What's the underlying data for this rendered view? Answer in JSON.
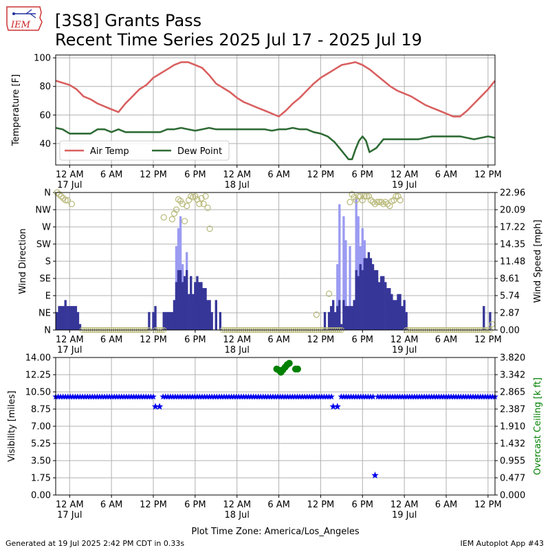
{
  "header": {
    "logo_text": "IEM",
    "title_line1": "[3S8] Grants Pass",
    "title_line2": "Recent Time Series 2025 Jul 17 - 2025 Jul 19"
  },
  "footer": {
    "generated": "Generated at 19 Jul 2025 2:42 PM CDT in 0.33s",
    "app": "IEM Autoplot App #43"
  },
  "x_axis": {
    "range_hours": [
      -2,
      61
    ],
    "ticks": [
      {
        "h": 0,
        "label": "12 AM",
        "date": "17 Jul"
      },
      {
        "h": 6,
        "label": "6 AM"
      },
      {
        "h": 12,
        "label": "12 PM"
      },
      {
        "h": 18,
        "label": "6 PM"
      },
      {
        "h": 24,
        "label": "12 AM",
        "date": "18 Jul"
      },
      {
        "h": 30,
        "label": "6 AM"
      },
      {
        "h": 36,
        "label": "12 PM"
      },
      {
        "h": 42,
        "label": "6 PM"
      },
      {
        "h": 48,
        "label": "12 AM",
        "date": "19 Jul"
      },
      {
        "h": 54,
        "label": "6 AM"
      },
      {
        "h": 60,
        "label": "12 PM"
      }
    ],
    "xlabel": "Plot Time Zone: America/Los_Angeles"
  },
  "colors": {
    "air_temp": "#d95f5f",
    "dew_point": "#2e6b34",
    "gust": "#9b9bf2",
    "wind_speed": "#363699",
    "direction": "#b8b87a",
    "visibility": "#0000ee",
    "ceiling": "#008000",
    "grid": "#b0b0b0"
  },
  "chart_data": [
    {
      "type": "line",
      "panel": "temperature",
      "ylabel": "Temperature [F]",
      "ylim": [
        25,
        102
      ],
      "yticks": [
        40,
        60,
        80,
        100
      ],
      "grid": true,
      "legend_placement": "lower-left",
      "series": [
        {
          "name": "Air Temp",
          "x": [
            -2,
            0,
            1,
            2,
            3,
            4,
            5,
            6,
            7,
            8,
            9,
            10,
            11,
            12,
            13,
            14,
            15,
            16,
            17,
            18,
            19,
            20,
            21,
            22,
            23,
            24,
            25,
            26,
            27,
            28,
            29,
            30,
            31,
            32,
            33,
            34,
            35,
            36,
            37,
            38,
            39,
            40,
            41,
            42,
            43,
            44,
            45,
            46,
            47,
            48,
            49,
            50,
            51,
            52,
            53,
            54,
            55,
            56,
            57,
            58,
            59,
            60,
            61
          ],
          "values": [
            84,
            81,
            78,
            73,
            71,
            68,
            66,
            64,
            62,
            68,
            73,
            78,
            81,
            86,
            89,
            92,
            95,
            97,
            97,
            95,
            93,
            88,
            82,
            79,
            76,
            72,
            69,
            67,
            65,
            63,
            61,
            59,
            63,
            68,
            72,
            77,
            82,
            86,
            89,
            92,
            95,
            96,
            97,
            95,
            92,
            88,
            84,
            80,
            77,
            75,
            73,
            70,
            67,
            65,
            63,
            61,
            59,
            59,
            63,
            68,
            73,
            78,
            84
          ]
        },
        {
          "name": "Dew Point",
          "x": [
            -2,
            -1,
            0,
            1,
            2,
            3,
            4,
            5,
            6,
            7,
            8,
            9,
            10,
            11,
            12,
            13,
            14,
            15,
            16,
            17,
            18,
            19,
            20,
            21,
            22,
            23,
            24,
            25,
            26,
            27,
            28,
            29,
            30,
            31,
            32,
            33,
            34,
            35,
            36,
            37,
            38,
            39,
            40,
            40.5,
            41,
            41.5,
            42,
            42.5,
            43,
            44,
            45,
            46,
            47,
            48,
            49,
            50,
            51,
            52,
            53,
            54,
            55,
            56,
            57,
            58,
            59,
            60,
            61
          ],
          "values": [
            51,
            50,
            47,
            47,
            47,
            47,
            50,
            50,
            48,
            50,
            48,
            48,
            48,
            48,
            48,
            48,
            50,
            50,
            51,
            50,
            49,
            50,
            51,
            50,
            50,
            50,
            50,
            50,
            50,
            50,
            50,
            49,
            50,
            50,
            51,
            50,
            50,
            48,
            47,
            45,
            41,
            35,
            29,
            29,
            36,
            42,
            45,
            42,
            34,
            37,
            43,
            43,
            43,
            43,
            43,
            43,
            44,
            45,
            45,
            45,
            45,
            45,
            44,
            43,
            44,
            45,
            44
          ]
        }
      ]
    },
    {
      "type": "bar",
      "panel": "wind",
      "ylabel": "Wind Direction",
      "ylabel_right": "Wind Speed [mph]",
      "y_direction_ticks": [
        "N",
        "NE",
        "E",
        "SE",
        "S",
        "SW",
        "W",
        "NW",
        "N"
      ],
      "y_speed_ticks": [
        "0.00",
        "2.87",
        "5.74",
        "8.61",
        "11.48",
        "14.35",
        "17.22",
        "20.09",
        "22.96"
      ],
      "speed_range": [
        0,
        22.96
      ],
      "grid": true,
      "series": [
        {
          "name": "Gust",
          "x": [
            15.3,
            15.6,
            15.9,
            16.2,
            16.8,
            38.4,
            38.7,
            39.3,
            39.6,
            40.2,
            41.1,
            41.4,
            41.7,
            42.0,
            42.3
          ],
          "values": [
            14,
            17,
            19,
            11,
            13,
            11,
            21,
            19,
            15,
            14,
            22,
            19,
            14,
            17,
            15
          ]
        },
        {
          "name": "Wind Speed",
          "x": [
            -1.8,
            -1.5,
            -1.2,
            -0.9,
            -0.6,
            -0.3,
            0,
            0.3,
            0.6,
            0.9,
            1.2,
            1.5,
            11.4,
            12.0,
            12.3,
            13.5,
            13.8,
            14.1,
            14.4,
            14.7,
            15.0,
            15.3,
            15.6,
            15.9,
            16.2,
            16.5,
            16.8,
            17.1,
            17.4,
            17.7,
            18.0,
            18.3,
            18.6,
            18.9,
            19.2,
            19.5,
            19.8,
            20.1,
            20.4,
            21.0,
            21.6,
            36.6,
            37.2,
            37.5,
            37.8,
            38.1,
            38.4,
            38.7,
            39.0,
            39.3,
            39.6,
            39.9,
            40.2,
            40.5,
            40.8,
            41.1,
            41.4,
            41.7,
            42.0,
            42.3,
            42.6,
            42.9,
            43.2,
            43.5,
            43.8,
            44.1,
            44.4,
            44.7,
            45.0,
            45.3,
            45.6,
            45.9,
            46.2,
            46.5,
            46.8,
            47.1,
            47.4,
            47.7,
            48.0,
            48.3,
            59.4,
            60.3
          ],
          "values": [
            3,
            4,
            4,
            4,
            5,
            4,
            4,
            4,
            4,
            4,
            3,
            1,
            3,
            3,
            4,
            3,
            3,
            3,
            3,
            3,
            5,
            8,
            10,
            10,
            8,
            9,
            10,
            6,
            9,
            6,
            8,
            9,
            8,
            8,
            7,
            7,
            5,
            5,
            3,
            5,
            3,
            3,
            3,
            4,
            5,
            3,
            4,
            5,
            1,
            5,
            4,
            4,
            4,
            4,
            5,
            10,
            9,
            11,
            10,
            12,
            12,
            13,
            12,
            11,
            10,
            10,
            8,
            9,
            9,
            8,
            7,
            7,
            6,
            5,
            5,
            6,
            6,
            4,
            5,
            3,
            4,
            3
          ]
        }
      ],
      "direction": {
        "points": [
          {
            "x": -1.8,
            "value": 360
          },
          {
            "x": -1.5,
            "value": 355
          },
          {
            "x": -1.2,
            "value": 350
          },
          {
            "x": -0.9,
            "value": 345
          },
          {
            "x": -0.6,
            "value": 340
          },
          {
            "x": -0.3,
            "value": 340
          },
          {
            "x": 0.3,
            "value": 330
          },
          {
            "x": 13.5,
            "value": 295
          },
          {
            "x": 14.7,
            "value": 290
          },
          {
            "x": 15.0,
            "value": 305
          },
          {
            "x": 15.3,
            "value": 315
          },
          {
            "x": 15.6,
            "value": 342
          },
          {
            "x": 15.9,
            "value": 338
          },
          {
            "x": 16.2,
            "value": 330
          },
          {
            "x": 16.5,
            "value": 285
          },
          {
            "x": 16.8,
            "value": 325
          },
          {
            "x": 17.1,
            "value": 340
          },
          {
            "x": 17.4,
            "value": 350
          },
          {
            "x": 17.7,
            "value": 348
          },
          {
            "x": 18.0,
            "value": 350
          },
          {
            "x": 18.3,
            "value": 342
          },
          {
            "x": 18.6,
            "value": 330
          },
          {
            "x": 18.9,
            "value": 345
          },
          {
            "x": 19.2,
            "value": 330
          },
          {
            "x": 19.5,
            "value": 350
          },
          {
            "x": 19.8,
            "value": 320
          },
          {
            "x": 20.1,
            "value": 265
          },
          {
            "x": 35.4,
            "value": 40
          },
          {
            "x": 37.2,
            "value": 95
          },
          {
            "x": 40.2,
            "value": 335
          },
          {
            "x": 40.5,
            "value": 355
          },
          {
            "x": 40.8,
            "value": 348
          },
          {
            "x": 41.1,
            "value": 340
          },
          {
            "x": 41.4,
            "value": 350
          },
          {
            "x": 41.7,
            "value": 350
          },
          {
            "x": 42.0,
            "value": 340
          },
          {
            "x": 42.3,
            "value": 350
          },
          {
            "x": 42.6,
            "value": 350
          },
          {
            "x": 42.9,
            "value": 350
          },
          {
            "x": 43.2,
            "value": 340
          },
          {
            "x": 43.5,
            "value": 335
          },
          {
            "x": 43.8,
            "value": 330
          },
          {
            "x": 44.1,
            "value": 335
          },
          {
            "x": 44.4,
            "value": 335
          },
          {
            "x": 44.7,
            "value": 335
          },
          {
            "x": 45.0,
            "value": 330
          },
          {
            "x": 45.3,
            "value": 335
          },
          {
            "x": 45.6,
            "value": 330
          },
          {
            "x": 45.9,
            "value": 325
          },
          {
            "x": 46.2,
            "value": 337
          },
          {
            "x": 46.5,
            "value": 340
          },
          {
            "x": 46.8,
            "value": 350
          },
          {
            "x": 47.1,
            "value": 350
          },
          {
            "x": 47.4,
            "value": 340
          },
          {
            "x": 60.6,
            "value": 15
          }
        ],
        "calm_ranges": [
          [
            1.8,
            11.4
          ],
          [
            12.3,
            13.5
          ],
          [
            21.9,
            36.0
          ],
          [
            36.3,
            39.0
          ],
          [
            48.3,
            60.3
          ]
        ],
        "calm_step": 0.3
      }
    },
    {
      "type": "scatter",
      "panel": "visibility",
      "ylabel": "Visibility [miles]",
      "ylabel_right": "Overcast Ceiling [k ft]",
      "ylim": [
        0,
        14
      ],
      "yticks": [
        "0.00",
        "1.75",
        "3.50",
        "5.25",
        "7.00",
        "8.75",
        "10.50",
        "12.25",
        "14.00"
      ],
      "ceiling_ticks": [
        "0.000",
        "0.477",
        "0.955",
        "1.432",
        "1.910",
        "2.387",
        "2.865",
        "3.342",
        "3.820"
      ],
      "ceiling_range": [
        0,
        3.82
      ],
      "grid": true,
      "visibility": {
        "baseline_value": 10,
        "baseline_range": [
          -2,
          61
        ],
        "step": 0.35,
        "exceptions": [
          {
            "x": 12.3,
            "value": 9
          },
          {
            "x": 12.9,
            "value": 9
          },
          {
            "x": 37.8,
            "value": 9
          },
          {
            "x": 38.4,
            "value": 9
          },
          {
            "x": 43.8,
            "value": 2
          }
        ]
      },
      "ceiling": {
        "x": [
          29.7,
          30.0,
          30.3,
          30.6,
          30.9,
          31.2,
          31.5,
          32.4,
          32.7
        ],
        "values": [
          3.5,
          3.47,
          3.41,
          3.48,
          3.55,
          3.62,
          3.66,
          3.5,
          3.5
        ]
      }
    }
  ]
}
